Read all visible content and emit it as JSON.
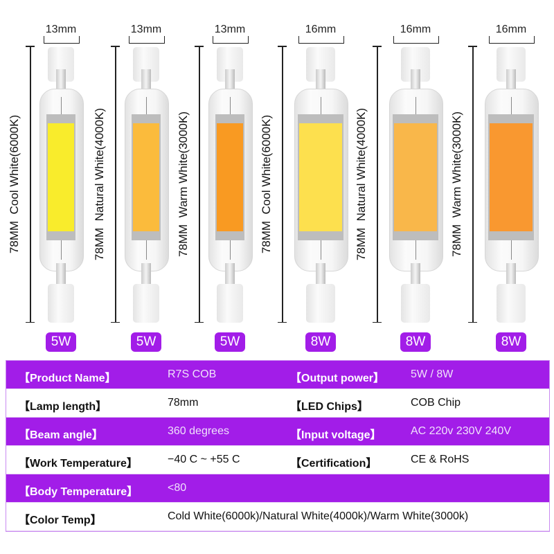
{
  "accent_color": "#a21de8",
  "lamps": [
    {
      "width_label": "13mm",
      "side_label": "78MM  Cool White(6000K)",
      "power": "5W",
      "chip_color": "#f9ec2c",
      "size": "small"
    },
    {
      "width_label": "13mm",
      "side_label": "78MM  Natural White(4000K)",
      "power": "5W",
      "chip_color": "#fbbb3c",
      "size": "small"
    },
    {
      "width_label": "13mm",
      "side_label": "78MM  Warm White(3000K)",
      "power": "5W",
      "chip_color": "#f99a22",
      "size": "small"
    },
    {
      "width_label": "16mm",
      "side_label": "78MM  Cool White(6000K)",
      "power": "8W",
      "chip_color": "#fde04e",
      "size": "large"
    },
    {
      "width_label": "16mm",
      "side_label": "78MM  Natural White(4000K)",
      "power": "8W",
      "chip_color": "#f9b74a",
      "size": "large"
    },
    {
      "width_label": "16mm",
      "side_label": "78MM  Warm White(3000K)",
      "power": "8W",
      "chip_color": "#f99830",
      "size": "large"
    }
  ],
  "specs": [
    {
      "label": "【Product Name】",
      "value": "R7S COB",
      "label2": "【Output power】",
      "value2": "5W / 8W"
    },
    {
      "label": "【Lamp length】",
      "value": "78mm",
      "label2": "【LED Chips】",
      "value2": "COB Chip"
    },
    {
      "label": "【Beam angle】",
      "value": "360 degrees",
      "label2": "【Input voltage】",
      "value2": "AC 220v 230V 240V"
    },
    {
      "label": "【Work Temperature】",
      "value": "−40 C ~ +55 C",
      "label2": "【Certification】",
      "value2": "CE & RoHS"
    },
    {
      "label": "【Body Temperature】",
      "value": "<80",
      "label2": "",
      "value2": ""
    },
    {
      "label": "【Color Temp】",
      "value": "Cold White(6000k)/Natural White(4000k)/Warm White(3000k)",
      "label2": "",
      "value2": ""
    }
  ]
}
